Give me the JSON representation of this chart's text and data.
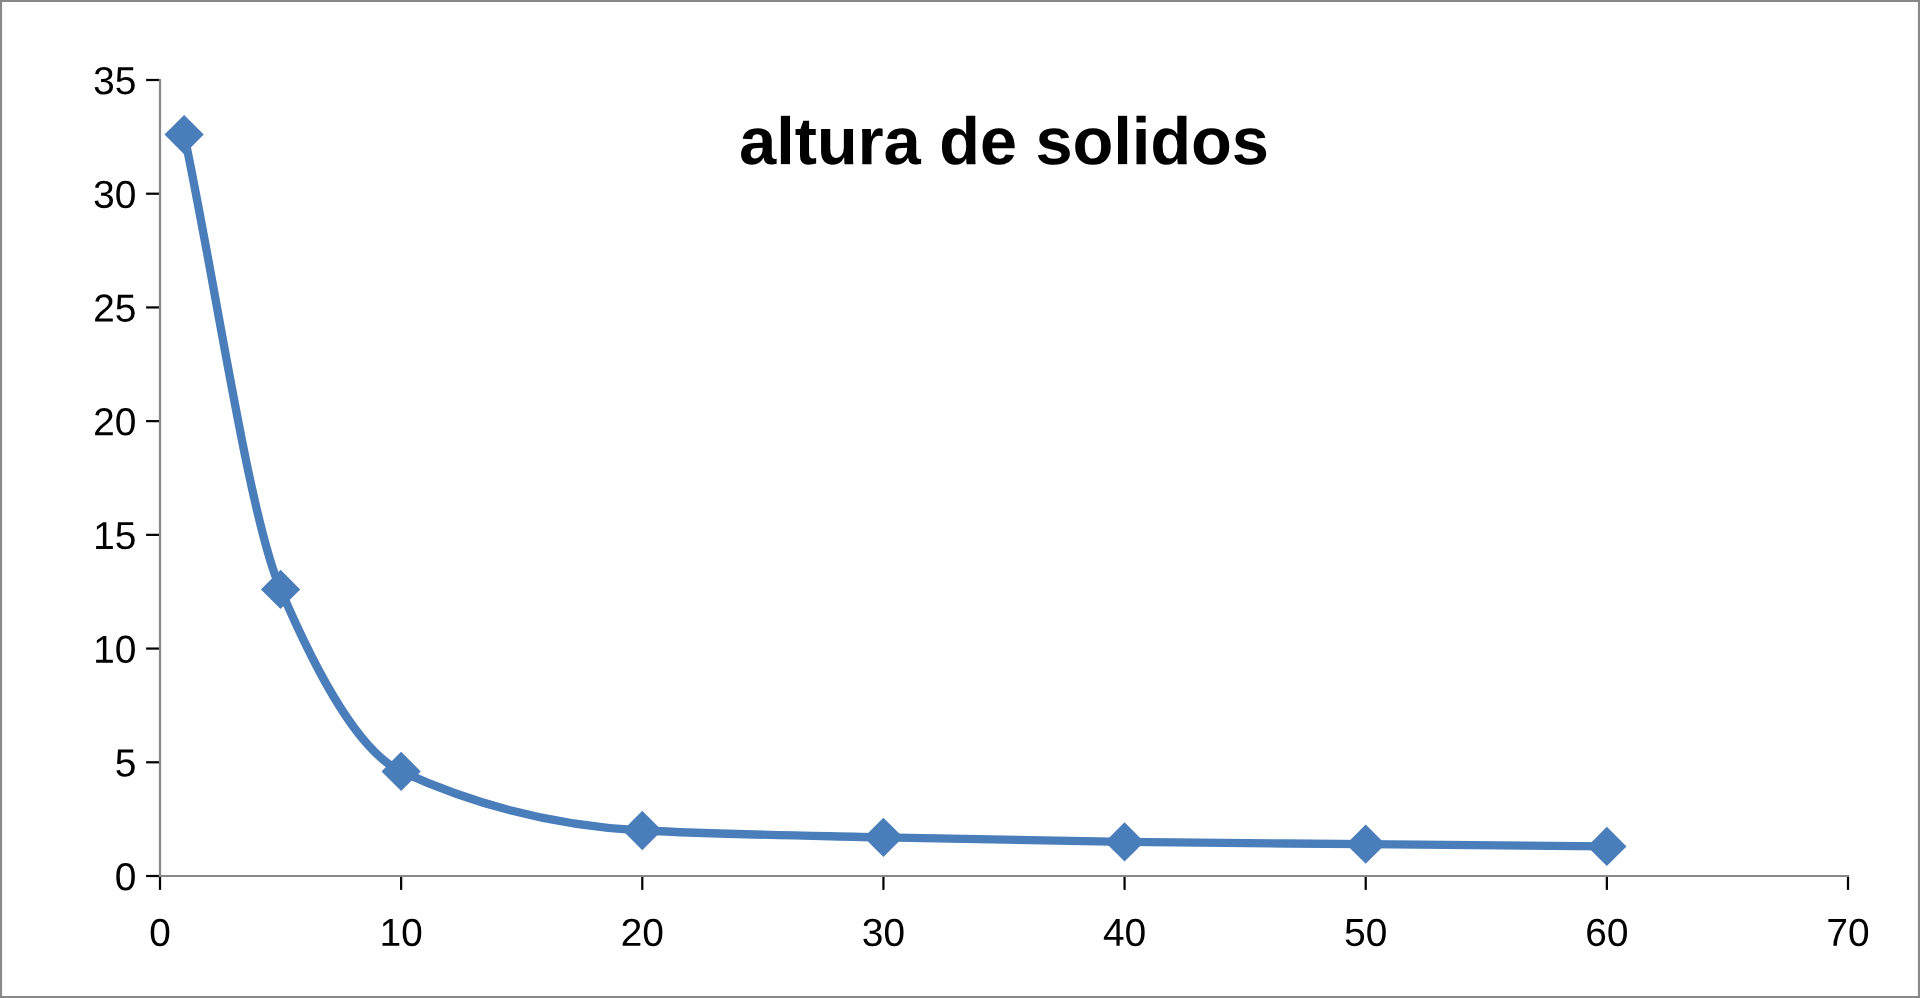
{
  "chart_data": {
    "type": "line",
    "title": "altura de solidos",
    "x": [
      1,
      5,
      10,
      20,
      30,
      40,
      50,
      60
    ],
    "series": [
      {
        "color": "#4a7ebb",
        "values": [
          32.6,
          12.6,
          4.6,
          2.0,
          1.7,
          1.5,
          1.4,
          1.3
        ]
      }
    ],
    "xlim": [
      0,
      70
    ],
    "xticks": [
      0,
      10,
      20,
      30,
      40,
      50,
      60,
      70
    ],
    "ylim": [
      0,
      35
    ],
    "yticks": [
      0,
      5,
      10,
      15,
      20,
      25,
      30,
      35
    ],
    "marker": "diamond",
    "line_style": "solid",
    "grid": false,
    "legend": false
  }
}
